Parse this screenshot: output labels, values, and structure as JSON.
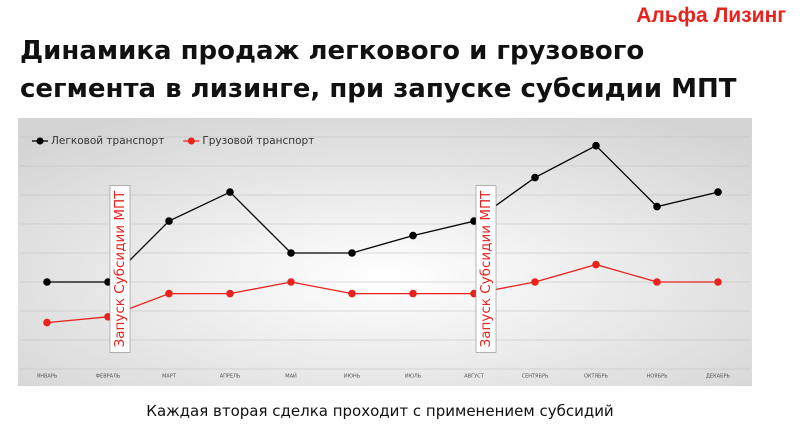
{
  "brand": "Альфа Лизинг",
  "chart_data": {
    "type": "line",
    "title": "Динамика продаж легкового и грузового сегмента в лизинге, при запуске субсидии МПТ",
    "categories": [
      "ЯНВАРЬ",
      "ФЕВРАЛЬ",
      "МАРТ",
      "АПРЕЛЬ",
      "МАЙ",
      "ИЮНЬ",
      "ИЮЛЬ",
      "АВГУСТ",
      "СЕНТЯБРЬ",
      "ОКТЯБРЬ",
      "НОЯБРЬ",
      "ДЕКАБРЬ"
    ],
    "series": [
      {
        "name": "Легковой транспорт",
        "color": "#000000",
        "values": [
          3.0,
          3.0,
          5.1,
          6.1,
          4.0,
          4.0,
          4.6,
          5.1,
          6.6,
          7.7,
          5.6,
          6.1
        ]
      },
      {
        "name": "Грузовой транспорт",
        "color": "#e8231d",
        "values": [
          1.6,
          1.8,
          2.6,
          2.6,
          3.0,
          2.6,
          2.6,
          2.6,
          3.0,
          3.6,
          3.0,
          3.0
        ]
      }
    ],
    "ylim": [
      0,
      8
    ],
    "grid": true,
    "legend": "top-left",
    "annotations": [
      {
        "text": "Запуск Субсидии  МПТ",
        "at": "ФЕВРАЛЬ",
        "color": "#e8231d"
      },
      {
        "text": "Запуск Субсидии  МПТ",
        "at": "АВГУСТ",
        "color": "#e8231d"
      }
    ]
  },
  "caption": "Каждая вторая сделка проходит с применением субсидий"
}
